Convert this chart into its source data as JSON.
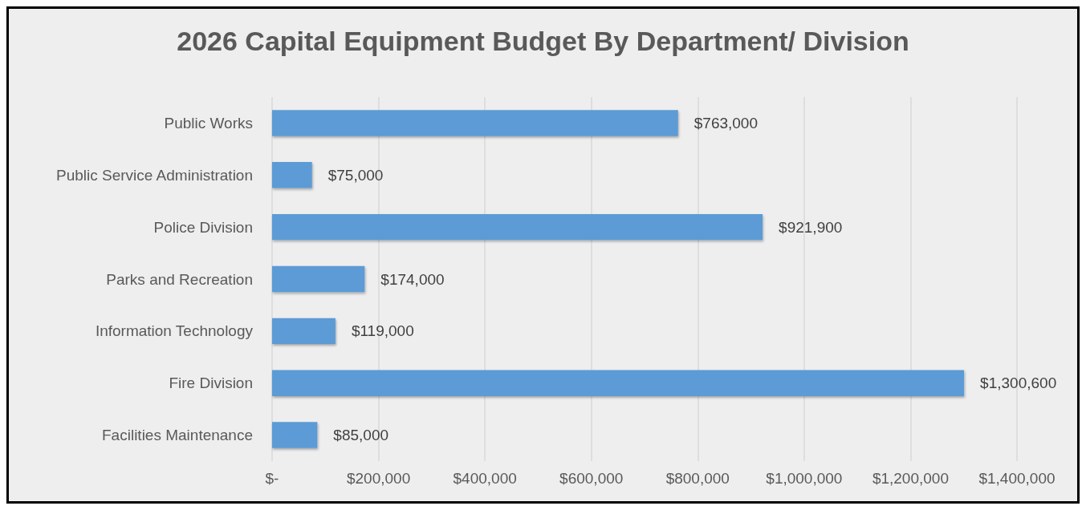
{
  "chart_data": {
    "type": "bar",
    "orientation": "horizontal",
    "title": "2026 Capital Equipment Budget By Department/ Division",
    "categories": [
      "Public Works",
      "Public Service Administration",
      "Police Division",
      "Parks and Recreation",
      "Information Technology",
      "Fire Division",
      "Facilities Maintenance"
    ],
    "values": [
      763000,
      75000,
      921900,
      174000,
      119000,
      1300600,
      85000
    ],
    "value_labels": [
      "$763,000",
      "$75,000",
      "$921,900",
      "$174,000",
      "$119,000",
      "$1,300,600",
      "$85,000"
    ],
    "color": "#5b9bd5",
    "xlim": [
      0,
      1400000
    ],
    "xticks": [
      {
        "value": 0,
        "label": "$-"
      },
      {
        "value": 200000,
        "label": "$200,000"
      },
      {
        "value": 400000,
        "label": "$400,000"
      },
      {
        "value": 600000,
        "label": "$600,000"
      },
      {
        "value": 800000,
        "label": "$800,000"
      },
      {
        "value": 1000000,
        "label": "$1,000,000"
      },
      {
        "value": 1200000,
        "label": "$1,200,000"
      },
      {
        "value": 1400000,
        "label": "$1,400,000"
      }
    ],
    "grid": "x"
  }
}
